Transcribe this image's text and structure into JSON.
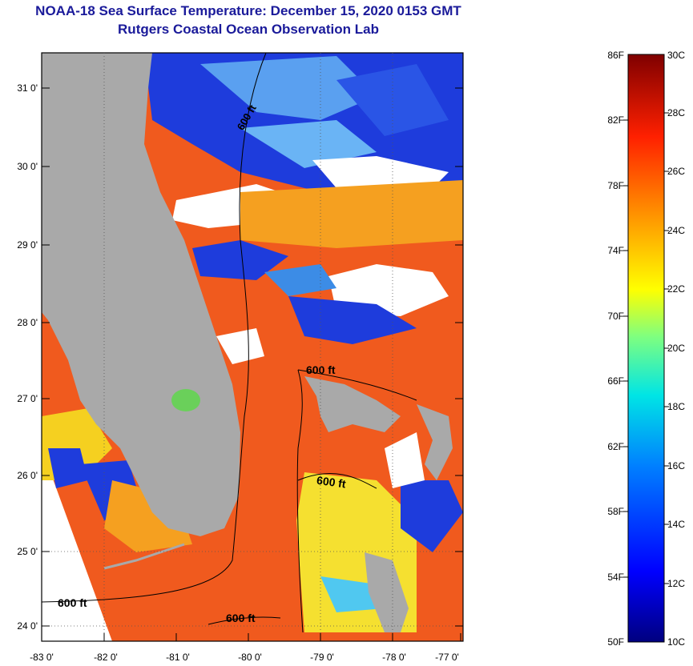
{
  "header": {
    "title": "NOAA-18 Sea Surface Temperature:  December 15, 2020 0153 GMT",
    "subtitle": "Rutgers Coastal Ocean Observation Lab"
  },
  "map": {
    "lat_labels": [
      "31 0'",
      "30 0'",
      "29 0'",
      "28 0'",
      "27 0'",
      "26 0'",
      "25 0'",
      "24 0'"
    ],
    "lon_labels": [
      "-83 0'",
      "-82 0'",
      "-81 0'",
      "-80 0'",
      "-79 0'",
      "-78 0'",
      "-77 0'"
    ],
    "contour_labels": [
      "600 ft",
      "600 ft",
      "600 ft",
      "600 ft",
      "600 ft"
    ],
    "colors": {
      "land": "#a9a9a9",
      "cloud": "#ffffff",
      "warm_water": "#f05a1e",
      "cool_water": "#1e3cdc"
    }
  },
  "colorbar": {
    "fahrenheit_labels": [
      "86F",
      "82F",
      "78F",
      "74F",
      "70F",
      "66F",
      "62F",
      "58F",
      "54F",
      "50F"
    ],
    "celsius_labels": [
      "30C",
      "28C",
      "26C",
      "24C",
      "22C",
      "20C",
      "18C",
      "16C",
      "14C",
      "12C",
      "10C"
    ]
  }
}
